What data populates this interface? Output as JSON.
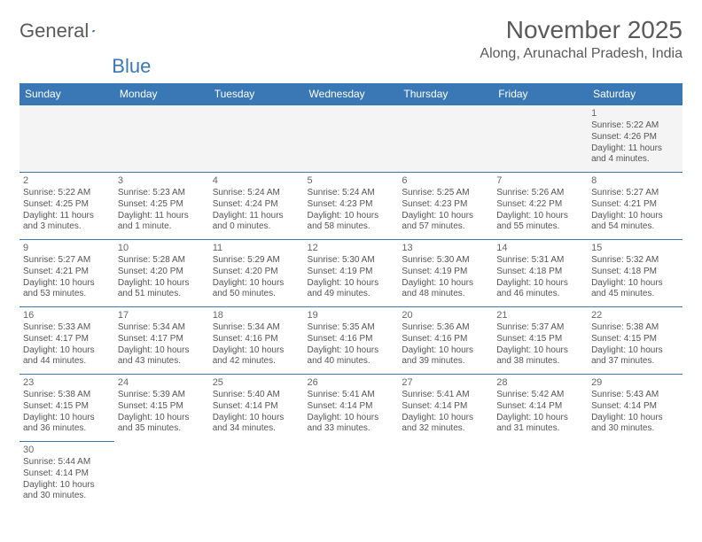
{
  "logo": {
    "text1": "General",
    "text2": "Blue"
  },
  "title": "November 2025",
  "location": "Along, Arunachal Pradesh, India",
  "colors": {
    "header_bg": "#3a78b5",
    "header_text": "#ffffff",
    "border": "#3a78b5",
    "text": "#555555",
    "title_text": "#5a5a5a",
    "empty_bg": "#f4f4f4",
    "page_bg": "#ffffff"
  },
  "font": {
    "title_size_pt": 21,
    "location_size_pt": 12,
    "dayhead_size_pt": 9,
    "cell_size_pt": 7.5
  },
  "dayNames": [
    "Sunday",
    "Monday",
    "Tuesday",
    "Wednesday",
    "Thursday",
    "Friday",
    "Saturday"
  ],
  "weeks": [
    [
      null,
      null,
      null,
      null,
      null,
      null,
      {
        "n": "1",
        "sr": "Sunrise: 5:22 AM",
        "ss": "Sunset: 4:26 PM",
        "dl": "Daylight: 11 hours and 4 minutes."
      }
    ],
    [
      {
        "n": "2",
        "sr": "Sunrise: 5:22 AM",
        "ss": "Sunset: 4:25 PM",
        "dl": "Daylight: 11 hours and 3 minutes."
      },
      {
        "n": "3",
        "sr": "Sunrise: 5:23 AM",
        "ss": "Sunset: 4:25 PM",
        "dl": "Daylight: 11 hours and 1 minute."
      },
      {
        "n": "4",
        "sr": "Sunrise: 5:24 AM",
        "ss": "Sunset: 4:24 PM",
        "dl": "Daylight: 11 hours and 0 minutes."
      },
      {
        "n": "5",
        "sr": "Sunrise: 5:24 AM",
        "ss": "Sunset: 4:23 PM",
        "dl": "Daylight: 10 hours and 58 minutes."
      },
      {
        "n": "6",
        "sr": "Sunrise: 5:25 AM",
        "ss": "Sunset: 4:23 PM",
        "dl": "Daylight: 10 hours and 57 minutes."
      },
      {
        "n": "7",
        "sr": "Sunrise: 5:26 AM",
        "ss": "Sunset: 4:22 PM",
        "dl": "Daylight: 10 hours and 55 minutes."
      },
      {
        "n": "8",
        "sr": "Sunrise: 5:27 AM",
        "ss": "Sunset: 4:21 PM",
        "dl": "Daylight: 10 hours and 54 minutes."
      }
    ],
    [
      {
        "n": "9",
        "sr": "Sunrise: 5:27 AM",
        "ss": "Sunset: 4:21 PM",
        "dl": "Daylight: 10 hours and 53 minutes."
      },
      {
        "n": "10",
        "sr": "Sunrise: 5:28 AM",
        "ss": "Sunset: 4:20 PM",
        "dl": "Daylight: 10 hours and 51 minutes."
      },
      {
        "n": "11",
        "sr": "Sunrise: 5:29 AM",
        "ss": "Sunset: 4:20 PM",
        "dl": "Daylight: 10 hours and 50 minutes."
      },
      {
        "n": "12",
        "sr": "Sunrise: 5:30 AM",
        "ss": "Sunset: 4:19 PM",
        "dl": "Daylight: 10 hours and 49 minutes."
      },
      {
        "n": "13",
        "sr": "Sunrise: 5:30 AM",
        "ss": "Sunset: 4:19 PM",
        "dl": "Daylight: 10 hours and 48 minutes."
      },
      {
        "n": "14",
        "sr": "Sunrise: 5:31 AM",
        "ss": "Sunset: 4:18 PM",
        "dl": "Daylight: 10 hours and 46 minutes."
      },
      {
        "n": "15",
        "sr": "Sunrise: 5:32 AM",
        "ss": "Sunset: 4:18 PM",
        "dl": "Daylight: 10 hours and 45 minutes."
      }
    ],
    [
      {
        "n": "16",
        "sr": "Sunrise: 5:33 AM",
        "ss": "Sunset: 4:17 PM",
        "dl": "Daylight: 10 hours and 44 minutes."
      },
      {
        "n": "17",
        "sr": "Sunrise: 5:34 AM",
        "ss": "Sunset: 4:17 PM",
        "dl": "Daylight: 10 hours and 43 minutes."
      },
      {
        "n": "18",
        "sr": "Sunrise: 5:34 AM",
        "ss": "Sunset: 4:16 PM",
        "dl": "Daylight: 10 hours and 42 minutes."
      },
      {
        "n": "19",
        "sr": "Sunrise: 5:35 AM",
        "ss": "Sunset: 4:16 PM",
        "dl": "Daylight: 10 hours and 40 minutes."
      },
      {
        "n": "20",
        "sr": "Sunrise: 5:36 AM",
        "ss": "Sunset: 4:16 PM",
        "dl": "Daylight: 10 hours and 39 minutes."
      },
      {
        "n": "21",
        "sr": "Sunrise: 5:37 AM",
        "ss": "Sunset: 4:15 PM",
        "dl": "Daylight: 10 hours and 38 minutes."
      },
      {
        "n": "22",
        "sr": "Sunrise: 5:38 AM",
        "ss": "Sunset: 4:15 PM",
        "dl": "Daylight: 10 hours and 37 minutes."
      }
    ],
    [
      {
        "n": "23",
        "sr": "Sunrise: 5:38 AM",
        "ss": "Sunset: 4:15 PM",
        "dl": "Daylight: 10 hours and 36 minutes."
      },
      {
        "n": "24",
        "sr": "Sunrise: 5:39 AM",
        "ss": "Sunset: 4:15 PM",
        "dl": "Daylight: 10 hours and 35 minutes."
      },
      {
        "n": "25",
        "sr": "Sunrise: 5:40 AM",
        "ss": "Sunset: 4:14 PM",
        "dl": "Daylight: 10 hours and 34 minutes."
      },
      {
        "n": "26",
        "sr": "Sunrise: 5:41 AM",
        "ss": "Sunset: 4:14 PM",
        "dl": "Daylight: 10 hours and 33 minutes."
      },
      {
        "n": "27",
        "sr": "Sunrise: 5:41 AM",
        "ss": "Sunset: 4:14 PM",
        "dl": "Daylight: 10 hours and 32 minutes."
      },
      {
        "n": "28",
        "sr": "Sunrise: 5:42 AM",
        "ss": "Sunset: 4:14 PM",
        "dl": "Daylight: 10 hours and 31 minutes."
      },
      {
        "n": "29",
        "sr": "Sunrise: 5:43 AM",
        "ss": "Sunset: 4:14 PM",
        "dl": "Daylight: 10 hours and 30 minutes."
      }
    ],
    [
      {
        "n": "30",
        "sr": "Sunrise: 5:44 AM",
        "ss": "Sunset: 4:14 PM",
        "dl": "Daylight: 10 hours and 30 minutes."
      },
      null,
      null,
      null,
      null,
      null,
      null
    ]
  ]
}
